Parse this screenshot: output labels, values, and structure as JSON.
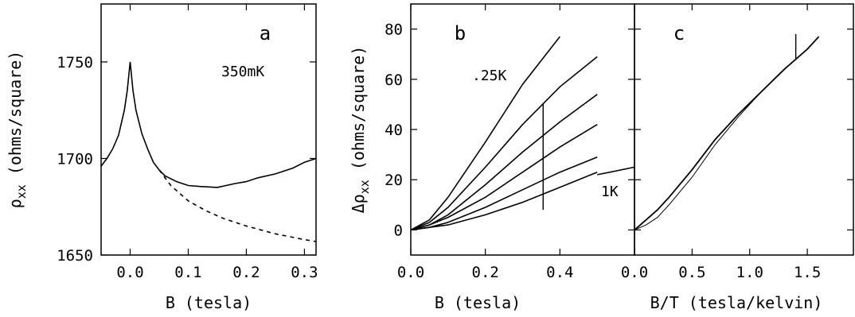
{
  "chart_data": [
    {
      "panel": "a",
      "type": "line",
      "panel_label": "a",
      "annotation": "350mK",
      "xlabel": "B  (tesla)",
      "ylabel": "ρ",
      "ylabel_subscript": "xx",
      "ylabel_units": "(ohms/square)",
      "xlim": [
        -0.05,
        0.32
      ],
      "ylim": [
        1650,
        1780
      ],
      "xticks": [
        "0.0",
        "0.1",
        "0.2",
        "0.3"
      ],
      "yticks": [
        "1650",
        "1700",
        "1750"
      ],
      "series": [
        {
          "style": "solid",
          "x": [
            -0.05,
            -0.04,
            -0.03,
            -0.02,
            -0.01,
            -0.005,
            0.0,
            0.005,
            0.01,
            0.02,
            0.03,
            0.04,
            0.05,
            0.06,
            0.08,
            0.1,
            0.12,
            0.15,
            0.18,
            0.2,
            0.22,
            0.25,
            0.28,
            0.3,
            0.32
          ],
          "y": [
            1696,
            1700,
            1705,
            1712,
            1725,
            1735,
            1750,
            1735,
            1725,
            1713,
            1705,
            1698,
            1694,
            1691,
            1688,
            1686,
            1685.5,
            1685,
            1687,
            1688,
            1690,
            1692,
            1695,
            1698,
            1700
          ]
        },
        {
          "style": "dashed",
          "x": [
            0.05,
            0.07,
            0.1,
            0.13,
            0.16,
            0.2,
            0.25,
            0.3,
            0.32
          ],
          "y": [
            1694,
            1686,
            1678,
            1673,
            1669,
            1665,
            1661,
            1658,
            1657
          ]
        }
      ]
    },
    {
      "panel": "b",
      "type": "line",
      "panel_label": "b",
      "annotations": [
        ".25K",
        "1K"
      ],
      "xlabel": "B  (tesla)",
      "ylabel": "Δρ",
      "ylabel_subscript": "xx",
      "ylabel_units": "(ohms/square)",
      "xlim": [
        0,
        0.5
      ],
      "ylim": [
        -10,
        90
      ],
      "xticks": [
        "0.0",
        "0.2",
        "0.4"
      ],
      "yticks": [
        "0",
        "20",
        "40",
        "60",
        "80"
      ],
      "series": [
        {
          "x": [
            0,
            0.05,
            0.1,
            0.2,
            0.3,
            0.4
          ],
          "y": [
            0,
            4,
            13,
            35,
            58,
            77
          ]
        },
        {
          "x": [
            0,
            0.05,
            0.1,
            0.2,
            0.3,
            0.4,
            0.5
          ],
          "y": [
            0,
            3,
            9,
            25,
            42,
            57,
            69
          ]
        },
        {
          "x": [
            0,
            0.05,
            0.1,
            0.2,
            0.3,
            0.4,
            0.5
          ],
          "y": [
            0,
            2,
            6,
            18,
            31,
            43,
            54
          ]
        },
        {
          "x": [
            0,
            0.05,
            0.1,
            0.2,
            0.3,
            0.4,
            0.5
          ],
          "y": [
            0,
            2,
            5,
            13,
            23,
            33,
            42
          ]
        },
        {
          "x": [
            0,
            0.05,
            0.1,
            0.2,
            0.3,
            0.4,
            0.5
          ],
          "y": [
            0,
            1,
            3,
            9,
            16,
            23,
            29
          ]
        },
        {
          "x": [
            0,
            0.05,
            0.1,
            0.2,
            0.3,
            0.4,
            0.5
          ],
          "y": [
            0,
            1,
            2,
            6,
            11,
            17,
            23
          ]
        },
        {
          "x": [
            0.5,
            0.6
          ],
          "y": [
            22,
            25
          ]
        }
      ],
      "spike": {
        "x": 0.355,
        "y": [
          8,
          50
        ]
      }
    },
    {
      "panel": "c",
      "type": "line",
      "panel_label": "c",
      "xlabel": "B/T  (tesla/kelvin)",
      "xlim": [
        0,
        2
      ],
      "ylim": [
        -10,
        90
      ],
      "xticks": [
        "0.0",
        "0.5",
        "1.0",
        "1.5"
      ],
      "series": [
        {
          "x": [
            0,
            0.1,
            0.2,
            0.3,
            0.5,
            0.7,
            0.9,
            1.1,
            1.3,
            1.5,
            1.6
          ],
          "y": [
            0,
            4,
            8,
            13,
            24,
            36,
            46,
            55,
            64,
            72,
            77
          ]
        },
        {
          "x": [
            0,
            0.1,
            0.2,
            0.3,
            0.5,
            0.7,
            0.9,
            1.1
          ],
          "y": [
            0,
            2,
            5,
            10,
            21,
            34,
            45,
            55
          ],
          "thin": true
        }
      ],
      "spike": {
        "x": 1.4,
        "y": [
          68,
          78
        ]
      }
    }
  ]
}
